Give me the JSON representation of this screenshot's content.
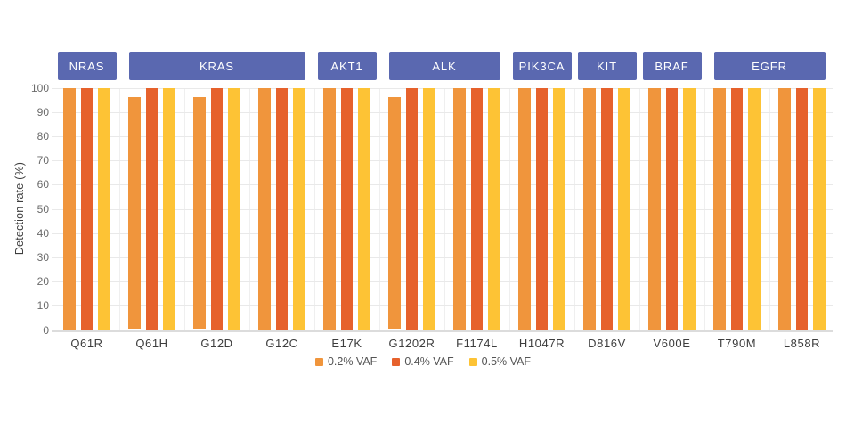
{
  "chart_data": {
    "type": "bar",
    "title": "",
    "ylabel": "Detection rate (%)",
    "xlabel": "",
    "ylim": [
      0,
      100
    ],
    "yticks": [
      0,
      10,
      20,
      30,
      40,
      50,
      60,
      70,
      80,
      90,
      100
    ],
    "grid": "horizontal",
    "legend_position": "bottom-center",
    "categories": [
      "Q61R",
      "Q61H",
      "G12D",
      "G12C",
      "E17K",
      "G1202R",
      "F1174L",
      "H1047R",
      "D816V",
      "V600E",
      "T790M",
      "L858R"
    ],
    "gene_groups": [
      {
        "gene": "NRAS",
        "start": 0,
        "end": 0
      },
      {
        "gene": "KRAS",
        "start": 1,
        "end": 3
      },
      {
        "gene": "AKT1",
        "start": 4,
        "end": 4
      },
      {
        "gene": "ALK",
        "start": 5,
        "end": 6
      },
      {
        "gene": "PIK3CA",
        "start": 7,
        "end": 7
      },
      {
        "gene": "KIT",
        "start": 8,
        "end": 8
      },
      {
        "gene": "BRAF",
        "start": 9,
        "end": 9
      },
      {
        "gene": "EGFR",
        "start": 10,
        "end": 11
      }
    ],
    "series": [
      {
        "name": "0.2% VAF",
        "color": "#F0953C",
        "values": [
          100,
          96,
          96,
          100,
          100,
          96,
          100,
          100,
          100,
          100,
          100,
          100
        ]
      },
      {
        "name": "0.4% VAF",
        "color": "#E6612C",
        "values": [
          100,
          100,
          100,
          100,
          100,
          100,
          100,
          100,
          100,
          100,
          100,
          100
        ]
      },
      {
        "name": "0.5% VAF",
        "color": "#FDC335",
        "values": [
          100,
          100,
          100,
          100,
          100,
          100,
          100,
          100,
          100,
          100,
          100,
          100
        ]
      }
    ],
    "colors": {
      "gene_box": "#5A68B0",
      "gene_box_text": "#FFFFFF",
      "gridline": "#E9E9E9",
      "axis_text": "#6B6B6B",
      "label_text": "#3D3D3D"
    }
  }
}
